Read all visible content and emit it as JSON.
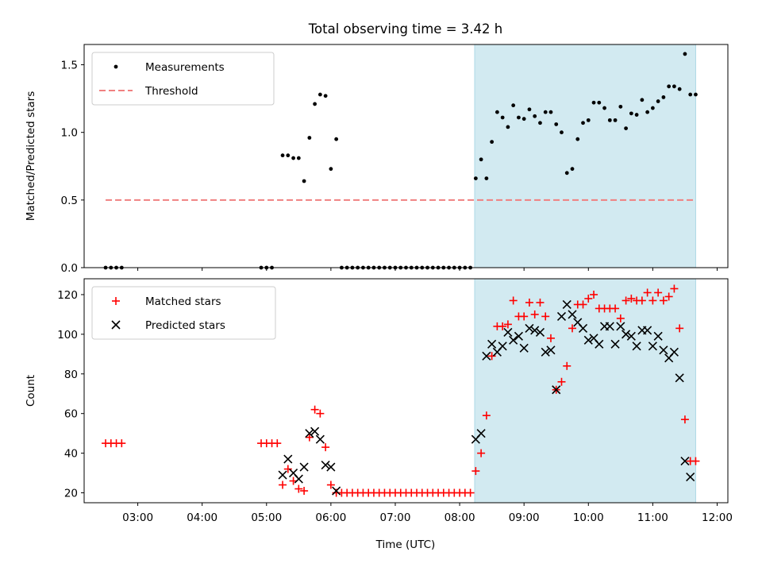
{
  "chart_data": {
    "title": "Total observing time = 3.42 h",
    "xlabel": "Time (UTC)",
    "x_ticks": [
      "03:00",
      "04:00",
      "05:00",
      "06:00",
      "07:00",
      "08:00",
      "09:00",
      "10:00",
      "11:00",
      "12:00"
    ],
    "xlim": [
      "02:10",
      "12:10"
    ],
    "shaded_span": {
      "start": "08:14",
      "end": "11:40",
      "color": "#add8e6"
    },
    "panels": [
      {
        "type": "scatter",
        "ylabel": "Matched/Predicted stars",
        "ylim": [
          0,
          1.65
        ],
        "y_ticks": [
          "0.0",
          "0.5",
          "1.0",
          "1.5"
        ],
        "y_tick_values": [
          0,
          0.5,
          1.0,
          1.5
        ],
        "legend": {
          "placement": "upper-left",
          "entries": [
            "Measurements",
            "Threshold"
          ]
        },
        "threshold": {
          "name": "Threshold",
          "value": 0.5,
          "x_range": [
            "02:30",
            "11:40"
          ],
          "color": "#f08080"
        },
        "series": [
          {
            "name": "Measurements",
            "color": "#000000",
            "marker": "dot",
            "x": [
              "02:30",
              "02:35",
              "02:40",
              "02:45",
              "04:55",
              "05:00",
              "05:05",
              "05:15",
              "05:20",
              "05:25",
              "05:30",
              "05:35",
              "05:40",
              "05:45",
              "05:50",
              "05:55",
              "06:00",
              "06:05",
              "06:10",
              "06:15",
              "06:20",
              "06:25",
              "06:30",
              "06:35",
              "06:40",
              "06:45",
              "06:50",
              "06:55",
              "07:00",
              "07:05",
              "07:10",
              "07:15",
              "07:20",
              "07:25",
              "07:30",
              "07:35",
              "07:40",
              "07:45",
              "07:50",
              "07:55",
              "08:00",
              "08:05",
              "08:10",
              "08:15",
              "08:20",
              "08:25",
              "08:30",
              "08:35",
              "08:40",
              "08:45",
              "08:50",
              "08:55",
              "09:00",
              "09:05",
              "09:10",
              "09:15",
              "09:20",
              "09:25",
              "09:30",
              "09:35",
              "09:40",
              "09:45",
              "09:50",
              "09:55",
              "10:00",
              "10:05",
              "10:10",
              "10:15",
              "10:20",
              "10:25",
              "10:30",
              "10:35",
              "10:40",
              "10:45",
              "10:50",
              "10:55",
              "11:00",
              "11:05",
              "11:10",
              "11:15",
              "11:20",
              "11:25",
              "11:30",
              "11:35",
              "11:40"
            ],
            "y": [
              0,
              0,
              0,
              0,
              0,
              0,
              0,
              0.83,
              0.83,
              0.81,
              0.81,
              0.64,
              0.96,
              1.21,
              1.28,
              1.27,
              0.73,
              0.95,
              0,
              0,
              0,
              0,
              0,
              0,
              0,
              0,
              0,
              0,
              0,
              0,
              0,
              0,
              0,
              0,
              0,
              0,
              0,
              0,
              0,
              0,
              0,
              0,
              0,
              0.66,
              0.8,
              0.66,
              0.93,
              1.15,
              1.11,
              1.04,
              1.2,
              1.11,
              1.1,
              1.17,
              1.12,
              1.07,
              1.15,
              1.15,
              1.06,
              1.0,
              0.7,
              0.73,
              0.95,
              1.07,
              1.09,
              1.22,
              1.22,
              1.18,
              1.09,
              1.09,
              1.19,
              1.03,
              1.14,
              1.13,
              1.24,
              1.15,
              1.18,
              1.23,
              1.26,
              1.34,
              1.34,
              1.32,
              1.58,
              1.28,
              1.28
            ]
          }
        ]
      },
      {
        "type": "scatter",
        "ylabel": "Count",
        "ylim": [
          15,
          128
        ],
        "y_ticks": [
          "20",
          "40",
          "60",
          "80",
          "100",
          "120"
        ],
        "y_tick_values": [
          20,
          40,
          60,
          80,
          100,
          120
        ],
        "legend": {
          "placement": "upper-left",
          "entries": [
            "Matched stars",
            "Predicted stars"
          ]
        },
        "series": [
          {
            "name": "Matched stars",
            "color": "#ff0000",
            "marker": "plus",
            "x": [
              "02:30",
              "02:35",
              "02:40",
              "02:45",
              "04:55",
              "05:00",
              "05:05",
              "05:10",
              "05:15",
              "05:20",
              "05:25",
              "05:30",
              "05:35",
              "05:40",
              "05:45",
              "05:50",
              "05:55",
              "06:00",
              "06:05",
              "06:10",
              "06:15",
              "06:20",
              "06:25",
              "06:30",
              "06:35",
              "06:40",
              "06:45",
              "06:50",
              "06:55",
              "07:00",
              "07:05",
              "07:10",
              "07:15",
              "07:20",
              "07:25",
              "07:30",
              "07:35",
              "07:40",
              "07:45",
              "07:50",
              "07:55",
              "08:00",
              "08:05",
              "08:10",
              "08:15",
              "08:20",
              "08:25",
              "08:30",
              "08:35",
              "08:40",
              "08:45",
              "08:50",
              "08:55",
              "09:00",
              "09:05",
              "09:10",
              "09:15",
              "09:20",
              "09:25",
              "09:30",
              "09:35",
              "09:40",
              "09:45",
              "09:50",
              "09:55",
              "10:00",
              "10:05",
              "10:10",
              "10:15",
              "10:20",
              "10:25",
              "10:30",
              "10:35",
              "10:40",
              "10:45",
              "10:50",
              "10:55",
              "11:00",
              "11:05",
              "11:10",
              "11:15",
              "11:20",
              "11:25",
              "11:30",
              "11:35",
              "11:40"
            ],
            "y": [
              45,
              45,
              45,
              45,
              45,
              45,
              45,
              45,
              24,
              32,
              26,
              22,
              21,
              48,
              62,
              60,
              43,
              24,
              20,
              20,
              20,
              20,
              20,
              20,
              20,
              20,
              20,
              20,
              20,
              20,
              20,
              20,
              20,
              20,
              20,
              20,
              20,
              20,
              20,
              20,
              20,
              20,
              20,
              20,
              31,
              40,
              59,
              89,
              104,
              104,
              105,
              117,
              109,
              109,
              116,
              110,
              116,
              109,
              98,
              72,
              76,
              84,
              103,
              115,
              115,
              118,
              120,
              113,
              113,
              113,
              113,
              108,
              117,
              118,
              117,
              117,
              121,
              117,
              121,
              117,
              119,
              123,
              103,
              57,
              36,
              36
            ]
          },
          {
            "name": "Predicted stars",
            "color": "#000000",
            "marker": "x",
            "x": [
              "05:15",
              "05:20",
              "05:25",
              "05:30",
              "05:35",
              "05:40",
              "05:45",
              "05:50",
              "05:55",
              "06:00",
              "06:05",
              "08:15",
              "08:20",
              "08:25",
              "08:30",
              "08:35",
              "08:40",
              "08:45",
              "08:50",
              "08:55",
              "09:00",
              "09:05",
              "09:10",
              "09:15",
              "09:20",
              "09:25",
              "09:30",
              "09:35",
              "09:40",
              "09:45",
              "09:50",
              "09:55",
              "10:00",
              "10:05",
              "10:10",
              "10:15",
              "10:20",
              "10:25",
              "10:30",
              "10:35",
              "10:40",
              "10:45",
              "10:50",
              "10:55",
              "11:00",
              "11:05",
              "11:10",
              "11:15",
              "11:20",
              "11:25",
              "11:30",
              "11:35"
            ],
            "y": [
              29,
              37,
              30,
              27,
              33,
              50,
              51,
              47,
              34,
              33,
              21,
              47,
              50,
              89,
              95,
              91,
              94,
              101,
              97,
              99,
              93,
              103,
              102,
              101,
              91,
              92,
              72,
              109,
              115,
              110,
              106,
              103,
              97,
              98,
              95,
              104,
              104,
              95,
              104,
              100,
              99,
              94,
              102,
              102,
              94,
              99,
              92,
              88,
              91,
              78,
              36,
              28
            ]
          }
        ]
      }
    ]
  }
}
